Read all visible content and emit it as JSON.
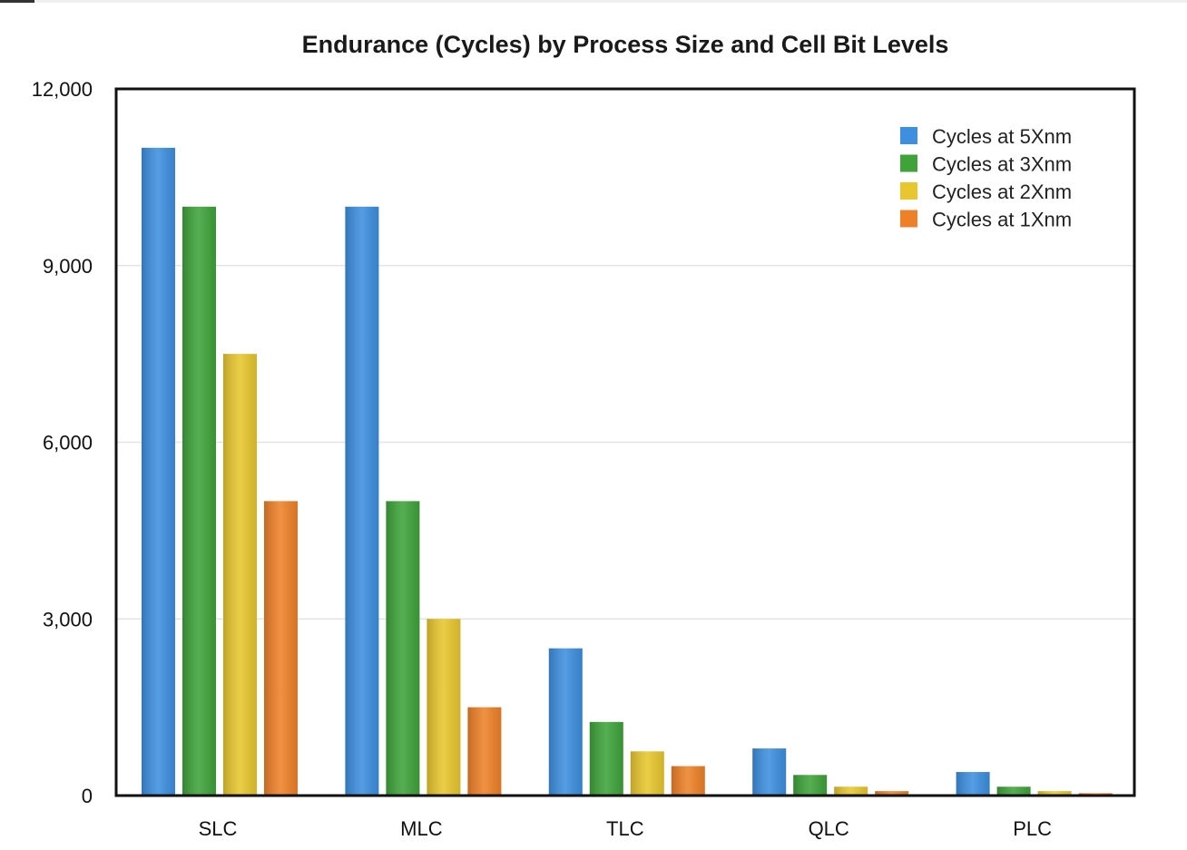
{
  "chart_data": {
    "type": "bar",
    "title": "Endurance (Cycles) by Process Size and Cell Bit Levels",
    "xlabel": "",
    "ylabel": "",
    "ylim": [
      0,
      12000
    ],
    "yticks": [
      "0",
      "3,000",
      "6,000",
      "9,000",
      "12,000"
    ],
    "ytick_values": [
      0,
      3000,
      6000,
      9000,
      12000
    ],
    "grid": true,
    "legend_position": "top-right",
    "categories": [
      "SLC",
      "MLC",
      "TLC",
      "QLC",
      "PLC"
    ],
    "series": [
      {
        "name": "Cycles at 5Xnm",
        "color": "#3d8fe0",
        "values": [
          11000,
          10000,
          2500,
          800,
          400
        ]
      },
      {
        "name": "Cycles at 3Xnm",
        "color": "#3fa33a",
        "values": [
          10000,
          5000,
          1250,
          350,
          150
        ]
      },
      {
        "name": "Cycles at 2Xnm",
        "color": "#e8c62e",
        "values": [
          7500,
          3000,
          750,
          150,
          75
        ]
      },
      {
        "name": "Cycles at 1Xnm",
        "color": "#ee8128",
        "values": [
          5000,
          1500,
          500,
          75,
          40
        ]
      }
    ]
  }
}
